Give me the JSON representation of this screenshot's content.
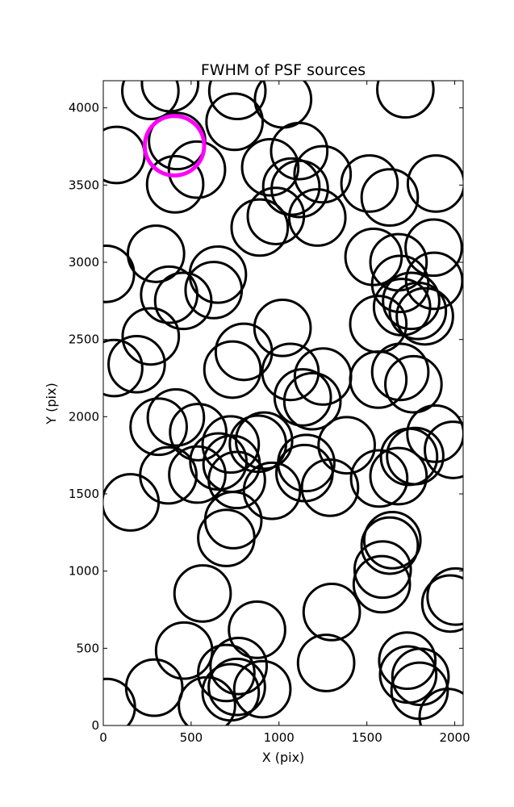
{
  "chart_data": {
    "type": "scatter",
    "title": "FWHM of PSF sources",
    "xlabel": "X (pix)",
    "ylabel": "Y (pix)",
    "xlim": [
      0,
      2048
    ],
    "ylim": [
      0,
      4176
    ],
    "xticks": [
      0,
      500,
      1000,
      1500,
      2000
    ],
    "yticks": [
      0,
      500,
      1000,
      1500,
      2000,
      2500,
      3000,
      3500,
      4000
    ],
    "grid": false,
    "marker": "open-circle",
    "marker_color": "#000000",
    "highlight_color": "#ff00ff",
    "circle_radius": 160,
    "highlight": {
      "x": 405,
      "y": 3755
    },
    "points": [
      {
        "x": 268,
        "y": 4110
      },
      {
        "x": 380,
        "y": 4160
      },
      {
        "x": 763,
        "y": 4110
      },
      {
        "x": 1023,
        "y": 4055
      },
      {
        "x": 1719,
        "y": 4120
      },
      {
        "x": 747,
        "y": 3910
      },
      {
        "x": 75,
        "y": 3695
      },
      {
        "x": 420,
        "y": 3785
      },
      {
        "x": 533,
        "y": 3600
      },
      {
        "x": 409,
        "y": 3505
      },
      {
        "x": 950,
        "y": 3615
      },
      {
        "x": 1115,
        "y": 3720
      },
      {
        "x": 1248,
        "y": 3570
      },
      {
        "x": 1070,
        "y": 3490
      },
      {
        "x": 1118,
        "y": 3475
      },
      {
        "x": 1515,
        "y": 3510
      },
      {
        "x": 1630,
        "y": 3420
      },
      {
        "x": 1893,
        "y": 3510
      },
      {
        "x": 982,
        "y": 3300
      },
      {
        "x": 890,
        "y": 3225
      },
      {
        "x": 1218,
        "y": 3290
      },
      {
        "x": 15,
        "y": 2925
      },
      {
        "x": 300,
        "y": 3055
      },
      {
        "x": 652,
        "y": 2920
      },
      {
        "x": 628,
        "y": 2820
      },
      {
        "x": 375,
        "y": 2790
      },
      {
        "x": 455,
        "y": 2750
      },
      {
        "x": 1538,
        "y": 3035
      },
      {
        "x": 1680,
        "y": 3000
      },
      {
        "x": 1880,
        "y": 3095
      },
      {
        "x": 1690,
        "y": 2860
      },
      {
        "x": 1883,
        "y": 2880
      },
      {
        "x": 1752,
        "y": 2750
      },
      {
        "x": 1700,
        "y": 2710
      },
      {
        "x": 1790,
        "y": 2685
      },
      {
        "x": 1830,
        "y": 2650
      },
      {
        "x": 1565,
        "y": 2600
      },
      {
        "x": 1020,
        "y": 2575
      },
      {
        "x": 270,
        "y": 2520
      },
      {
        "x": 800,
        "y": 2420
      },
      {
        "x": 190,
        "y": 2340
      },
      {
        "x": 62,
        "y": 2315
      },
      {
        "x": 735,
        "y": 2305
      },
      {
        "x": 1065,
        "y": 2290
      },
      {
        "x": 1250,
        "y": 2260
      },
      {
        "x": 1565,
        "y": 2240
      },
      {
        "x": 1690,
        "y": 2290
      },
      {
        "x": 1765,
        "y": 2210
      },
      {
        "x": 1135,
        "y": 2125
      },
      {
        "x": 1190,
        "y": 2100
      },
      {
        "x": 413,
        "y": 1995
      },
      {
        "x": 315,
        "y": 1935
      },
      {
        "x": 540,
        "y": 1900
      },
      {
        "x": 725,
        "y": 1820
      },
      {
        "x": 880,
        "y": 1825
      },
      {
        "x": 915,
        "y": 1845
      },
      {
        "x": 1385,
        "y": 1815
      },
      {
        "x": 1890,
        "y": 1890
      },
      {
        "x": 1990,
        "y": 1785
      },
      {
        "x": 655,
        "y": 1710
      },
      {
        "x": 730,
        "y": 1695
      },
      {
        "x": 1155,
        "y": 1700
      },
      {
        "x": 1145,
        "y": 1635
      },
      {
        "x": 1740,
        "y": 1740
      },
      {
        "x": 1775,
        "y": 1745
      },
      {
        "x": 370,
        "y": 1620
      },
      {
        "x": 535,
        "y": 1625
      },
      {
        "x": 760,
        "y": 1590
      },
      {
        "x": 960,
        "y": 1520
      },
      {
        "x": 1290,
        "y": 1540
      },
      {
        "x": 1570,
        "y": 1600
      },
      {
        "x": 1680,
        "y": 1615
      },
      {
        "x": 155,
        "y": 1445
      },
      {
        "x": 740,
        "y": 1330
      },
      {
        "x": 700,
        "y": 1215
      },
      {
        "x": 1645,
        "y": 1200
      },
      {
        "x": 1630,
        "y": 1165
      },
      {
        "x": 1590,
        "y": 1010
      },
      {
        "x": 1585,
        "y": 915
      },
      {
        "x": 565,
        "y": 855
      },
      {
        "x": 2005,
        "y": 835
      },
      {
        "x": 1975,
        "y": 790
      },
      {
        "x": 1300,
        "y": 735
      },
      {
        "x": 875,
        "y": 620
      },
      {
        "x": 460,
        "y": 485
      },
      {
        "x": 1268,
        "y": 405
      },
      {
        "x": 1730,
        "y": 420
      },
      {
        "x": 770,
        "y": 385
      },
      {
        "x": 700,
        "y": 340
      },
      {
        "x": 1735,
        "y": 330
      },
      {
        "x": 1805,
        "y": 315
      },
      {
        "x": 290,
        "y": 245
      },
      {
        "x": 760,
        "y": 250
      },
      {
        "x": 905,
        "y": 235
      },
      {
        "x": 725,
        "y": 215
      },
      {
        "x": 1800,
        "y": 225
      },
      {
        "x": 20,
        "y": 120
      },
      {
        "x": 590,
        "y": 130
      },
      {
        "x": 1960,
        "y": 55
      }
    ]
  }
}
